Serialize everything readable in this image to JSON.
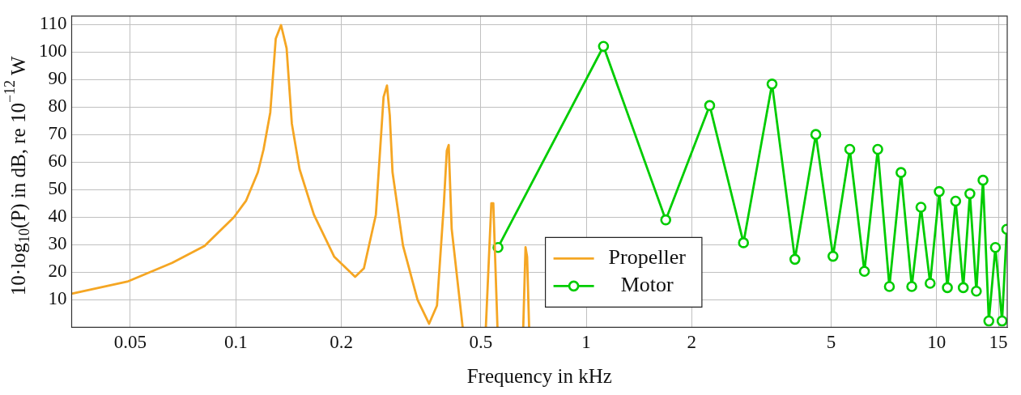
{
  "chart_data": {
    "type": "line",
    "xlabel": "Frequency in kHz",
    "ylabel": "10·log$_{10}$(P) in dB, re 10$^{−12}$ W",
    "log": "x",
    "grid": true,
    "legend": "bottom",
    "line_style": "solid",
    "xlim": [
      0.034,
      15.9
    ],
    "xticks": [
      0.05,
      0.1,
      0.2,
      0.5,
      1,
      2,
      5,
      10,
      15
    ],
    "ylim": [
      0,
      113
    ],
    "yticks": [
      10,
      20,
      30,
      40,
      50,
      60,
      70,
      80,
      90,
      100,
      110
    ],
    "series": [
      {
        "name": "Propeller",
        "color": "#f5a623",
        "marker": "none",
        "x": [
          0.0342,
          0.0493,
          0.0658,
          0.0815,
          0.0988,
          0.107,
          0.1156,
          0.12,
          0.1254,
          0.13,
          0.1346,
          0.1396,
          0.1445,
          0.152,
          0.167,
          0.191,
          0.219,
          0.232,
          0.251,
          0.264,
          0.27,
          0.275,
          0.28,
          0.3,
          0.33,
          0.356,
          0.375,
          0.392,
          0.4,
          0.405,
          0.413,
          0.444,
          0.48,
          0.517,
          0.536,
          0.543,
          0.558,
          0.61,
          0.661,
          0.671,
          0.678,
          0.687
        ],
        "values": [
          12.3,
          16.7,
          23.4,
          29.6,
          40,
          46,
          56.3,
          64.6,
          78,
          104.8,
          109.7,
          101.3,
          73.9,
          57.4,
          40.9,
          25.6,
          18.3,
          21.4,
          40.9,
          83.6,
          87.8,
          76.9,
          56.3,
          29.6,
          10,
          1.3,
          7.9,
          44,
          64.1,
          66.2,
          35.8,
          0,
          null,
          0,
          45,
          45,
          0,
          null,
          0,
          29.1,
          25.6,
          0
        ]
      },
      {
        "name": "Motor",
        "color": "#00cc00",
        "marker": "circle",
        "x": [
          0.56,
          1.12,
          1.686,
          2.25,
          2.81,
          3.39,
          3.94,
          4.52,
          5.06,
          5.65,
          6.22,
          6.79,
          7.33,
          7.91,
          8.49,
          9.02,
          9.58,
          10.17,
          10.73,
          11.33,
          11.91,
          12.44,
          12.98,
          13.56,
          14.09,
          14.71,
          15.37,
          15.85
        ],
        "values": [
          29,
          102,
          39,
          80.5,
          30.7,
          88.3,
          24.7,
          70,
          25.8,
          64.6,
          20.3,
          64.6,
          14.8,
          56.2,
          14.8,
          43.6,
          16,
          49.3,
          14.4,
          45.8,
          14.4,
          48.5,
          13.1,
          53.4,
          2.3,
          29,
          2.3,
          35.6
        ]
      }
    ]
  }
}
